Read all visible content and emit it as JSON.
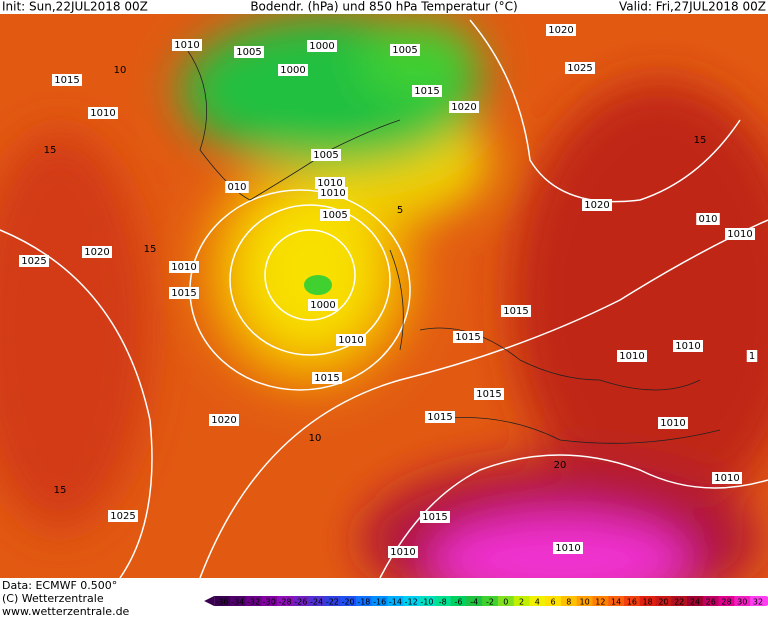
{
  "header": {
    "init": "Init: Sun,22JUL2018 00Z",
    "title": "Bodendr. (hPa) und 850 hPa Temperatur (°C)",
    "valid": "Valid: Fri,27JUL2018 00Z"
  },
  "footer": {
    "data": "Data: ECMWF  0.500°",
    "copyright": "(C) Wetterzentrale",
    "url": "www.wetterzentrale.de"
  },
  "map": {
    "labels": [
      "1010",
      "1005",
      "1000",
      "1005",
      "1000",
      "1015",
      "1020",
      "1020",
      "1025",
      "1015",
      "1010",
      "1005",
      "1010",
      "1010",
      "1005",
      "010",
      "1020",
      "010",
      "1010",
      "1025",
      "1020",
      "1010",
      "1015",
      "1000",
      "1010",
      "1015",
      "1015",
      "1010",
      "1010",
      "1015",
      "1015",
      "1015",
      "1020",
      "1010",
      "1010",
      "1025",
      "1015",
      "1010",
      "1010",
      "1",
      "15",
      "10",
      "5",
      "15",
      "20",
      "15",
      "10",
      "15"
    ]
  },
  "colorbar": {
    "ticks": [
      -36,
      -34,
      -32,
      -30,
      -28,
      -26,
      -24,
      -22,
      -20,
      -18,
      -16,
      -14,
      -12,
      -10,
      -8,
      -6,
      -4,
      -2,
      0,
      2,
      4,
      6,
      8,
      10,
      12,
      14,
      16,
      18,
      20,
      22,
      24,
      26,
      28,
      30,
      32
    ],
    "colors": [
      "#3a0050",
      "#50006a",
      "#6a0088",
      "#8000a0",
      "#9010b8",
      "#7020c0",
      "#5030d0",
      "#3040e0",
      "#2050f0",
      "#1070ff",
      "#0090ff",
      "#00b0ff",
      "#00d0f0",
      "#00e0c0",
      "#00e090",
      "#00d060",
      "#20c040",
      "#40d030",
      "#80e020",
      "#c0f000",
      "#f0f000",
      "#ffe000",
      "#ffc000",
      "#ffa000",
      "#ff8000",
      "#f86010",
      "#f04010",
      "#e02010",
      "#c81818",
      "#b01020",
      "#a00030",
      "#c00060",
      "#e00090",
      "#f020c0",
      "#ff40f0"
    ]
  }
}
